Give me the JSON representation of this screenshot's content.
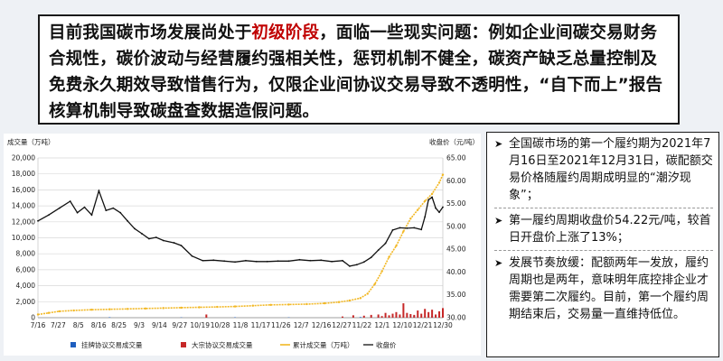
{
  "headline": {
    "part1": "目前我国碳市场发展尚处于",
    "highlight": "初级阶段",
    "part2": "，面临一些现实问题：例如企业间碳交易财务合规性，碳价波动与经营履约强相关性，惩罚机制不健全，碳资产缺乏总量控制及免费永久期效导致惜售行为，仅限企业间协议交易导致不透明性，“自下而上”报告核算机制导致碳盘查数据造假问题。"
  },
  "colors": {
    "accent": "#c00000",
    "bar_listing": "#1f5fbf",
    "bar_bulk": "#c62828",
    "cumulative": "#f2b825",
    "close_price": "#111111"
  },
  "bullets": [
    {
      "icon": "arrow-bullet-icon",
      "text": "全国碳市场的第一个履约期为2021年7月16日至2021年12月31日，碳配额交易价格随履约周期成明显的“潮汐现象”；"
    },
    {
      "icon": "arrow-bullet-icon",
      "text": "第一履约周期收盘价54.22元/吨，较首日开盘价上涨了13%；"
    },
    {
      "icon": "arrow-bullet-icon",
      "text": "发展节奏放缓：配额两年一发放，履约周期也是两年，意味明年底控排企业才需要第二次履约。目前，第一个履约周期结束后，交易量一直维持低位。"
    }
  ],
  "chart_data": {
    "type": "line",
    "ylabel_left": "成交量（万吨）",
    "ylabel_right": "收盘价（元/吨）",
    "y_left_ticks": [
      "0",
      "2,000",
      "4,000",
      "6,000",
      "8,000",
      "10,000",
      "12,000",
      "14,000",
      "16,000",
      "18,000",
      "20,000"
    ],
    "y_left_range": [
      0,
      20000
    ],
    "y_right_ticks": [
      "30.00",
      "35.00",
      "40.00",
      "45.00",
      "50.00",
      "55.00",
      "60.00",
      "65.00"
    ],
    "y_right_range": [
      30,
      65
    ],
    "x_ticks": [
      "7/16",
      "7/27",
      "8/5",
      "8/16",
      "8/25",
      "9/3",
      "9/14",
      "9/27",
      "10/19",
      "10/28",
      "11/8",
      "11/17",
      "11/26",
      "12/7",
      "12/16",
      "12/27",
      "11/22",
      "12/1",
      "12/10",
      "12/21",
      "12/30"
    ],
    "legend": [
      "挂牌协议交易成交量",
      "大宗协议交易成交量",
      "累计成交量（万吨）",
      "收盘价"
    ],
    "grid": true,
    "n_days": 114,
    "close_price": {
      "x": [
        0,
        3,
        6,
        9,
        11,
        13,
        15,
        17,
        19,
        21,
        23,
        25,
        27,
        29,
        31,
        33,
        35,
        38,
        40,
        43,
        46,
        49,
        52,
        55,
        58,
        61,
        64,
        67,
        70,
        73,
        76,
        79,
        82,
        85,
        87,
        89,
        91,
        93,
        95,
        97,
        99,
        101,
        103,
        105,
        107,
        108,
        109,
        110,
        111,
        112,
        113
      ],
      "y": [
        51.2,
        52.5,
        54.0,
        55.5,
        53.0,
        54.2,
        52.5,
        57.8,
        53.5,
        54.0,
        53.0,
        51.2,
        49.5,
        48.4,
        47.3,
        47.6,
        46.9,
        46.4,
        45.8,
        43.5,
        42.5,
        42.6,
        42.4,
        42.2,
        42.5,
        42.3,
        42.3,
        42.4,
        42.4,
        42.7,
        42.5,
        42.6,
        42.3,
        42.5,
        41.3,
        41.6,
        42.2,
        43.2,
        44.8,
        46.3,
        49.2,
        49.7,
        49.6,
        49.7,
        49.3,
        52.1,
        55.8,
        56.4,
        54.0,
        53.1,
        54.22
      ]
    },
    "cumulative": {
      "x": [
        0,
        3,
        6,
        10,
        15,
        20,
        25,
        30,
        35,
        40,
        45,
        50,
        55,
        60,
        65,
        70,
        75,
        80,
        84,
        87,
        90,
        92,
        94,
        96,
        98,
        100,
        102,
        104,
        106,
        108,
        110,
        112,
        113
      ],
      "y": [
        400,
        600,
        800,
        900,
        1000,
        1050,
        1100,
        1150,
        1200,
        1250,
        1300,
        1350,
        1400,
        1500,
        1600,
        1650,
        1700,
        1800,
        1950,
        2150,
        2450,
        3000,
        4200,
        5800,
        7600,
        9000,
        10800,
        12400,
        13500,
        14600,
        15500,
        16900,
        17900
      ]
    },
    "bars_listing": {
      "x": [
        20,
        40,
        55,
        70,
        85,
        90,
        95,
        100,
        105,
        110
      ],
      "y": [
        60,
        40,
        50,
        40,
        60,
        80,
        120,
        150,
        180,
        200
      ]
    },
    "bars_bulk": {
      "x": [
        47,
        85,
        88,
        91,
        93,
        95,
        96,
        97,
        98,
        99,
        100,
        101,
        102,
        103,
        104,
        105,
        106,
        107,
        108,
        109,
        110,
        111,
        112,
        113
      ],
      "y": [
        400,
        150,
        300,
        250,
        350,
        400,
        200,
        600,
        300,
        500,
        700,
        400,
        1800,
        600,
        450,
        350,
        900,
        500,
        1100,
        700,
        1000,
        400,
        800,
        1200
      ]
    }
  }
}
